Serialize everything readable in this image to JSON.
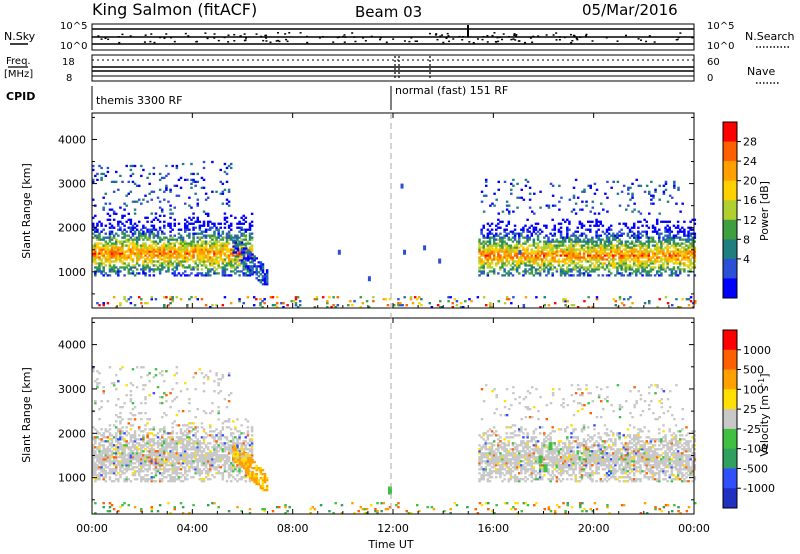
{
  "header": {
    "site": "King Salmon (fitACF)",
    "beam": "Beam 03",
    "date": "05/Mar/2016"
  },
  "status_panel": {
    "nsky_label": "N.Sky",
    "nsky_ticks": [
      "10^5",
      "10^0"
    ],
    "nsearch_label": "N.Search",
    "nsearch_ticks": [
      "10^5",
      "10^0"
    ],
    "freq_label_1": "Freq.",
    "freq_label_2": "[MHz]",
    "freq_ticks": [
      "18",
      "8"
    ],
    "nave_label": "Nave",
    "nave_ticks": [
      "60",
      "0"
    ],
    "cpid_label": "CPID",
    "cpid_1": "themis 3300 RF",
    "cpid_2": "normal (fast) 151 RF"
  },
  "chart_data": [
    {
      "type": "heatmap",
      "name": "power",
      "ylabel": "Slant Range [km]",
      "ylim": [
        180,
        4600
      ],
      "yticks": [
        1000,
        2000,
        3000,
        4000
      ],
      "xlim": [
        0,
        24
      ],
      "colorbar_label": "Power [dB]",
      "colorbar_ticks": [
        "28",
        "24",
        "20",
        "16",
        "12",
        "8",
        "4"
      ],
      "colors": [
        "#0000ff",
        "#2b4fd6",
        "#1f7f7f",
        "#3f9f3f",
        "#b0d030",
        "#ffd000",
        "#ffa000",
        "#ff6000",
        "#ff0000"
      ],
      "regions": [
        {
          "t": [
            0.0,
            6.4
          ],
          "r": [
            900,
            2300
          ],
          "note": "dense band"
        },
        {
          "t": [
            0.0,
            5.5
          ],
          "r": [
            2300,
            3500
          ],
          "note": "sparse"
        },
        {
          "t": [
            5.6,
            7.0
          ],
          "r": [
            700,
            1700
          ],
          "note": "descending arc"
        },
        {
          "t": [
            15.4,
            24.0
          ],
          "r": [
            900,
            2200
          ],
          "note": "dense band"
        },
        {
          "t": [
            15.5,
            23.5
          ],
          "r": [
            2300,
            3100
          ],
          "note": "sparse"
        },
        {
          "t": [
            0.0,
            24.0
          ],
          "r": [
            180,
            450
          ],
          "note": "ground scatter line"
        }
      ]
    },
    {
      "type": "heatmap",
      "name": "velocity",
      "ylabel": "Slant Range [km]",
      "ylim": [
        180,
        4600
      ],
      "yticks": [
        1000,
        2000,
        3000,
        4000
      ],
      "xlim": [
        0,
        24
      ],
      "xlabel": "Time UT",
      "xticks": [
        "00:00",
        "04:00",
        "08:00",
        "12:00",
        "16:00",
        "20:00",
        "00:00"
      ],
      "colorbar_label": "Velocity [m s^-1]",
      "colorbar_ticks": [
        "1000",
        "500",
        "100",
        "25",
        "-25",
        "-100",
        "-500",
        "-1000"
      ],
      "colors": [
        "#2030c0",
        "#3050ff",
        "#30a060",
        "#40c040",
        "#c8c8c8",
        "#ffe000",
        "#ffa000",
        "#ff6000",
        "#ff0000"
      ]
    }
  ]
}
